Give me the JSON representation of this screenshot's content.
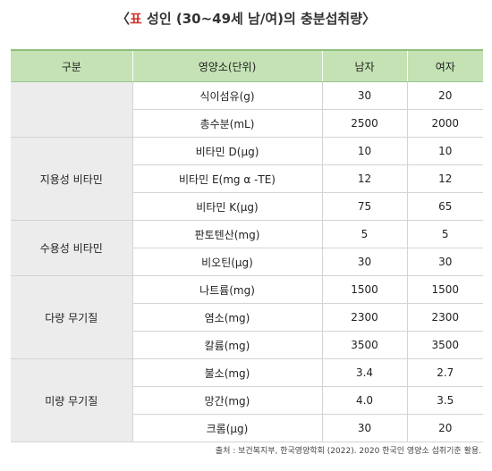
{
  "title": {
    "open": "〈",
    "label": "표",
    "text": " 성인 (30~49세 남/여)의 충분섭취량〉"
  },
  "table": {
    "header": [
      "구분",
      "영양소(단위)",
      "남자",
      "여자"
    ],
    "groups": [
      {
        "items": [
          {
            "nutrient": "식이섬유(g)",
            "male": 30,
            "female": 20
          },
          {
            "nutrient": "총수분(mL)",
            "male": 2500,
            "female": 2000
          }
        ]
      },
      {
        "name": "지용성 비타민",
        "items": [
          {
            "nutrient": "비타민 D(μg)",
            "male": 10,
            "female": 10
          },
          {
            "nutrient": "비타민 E(mg α -TE)",
            "male": 12,
            "female": 12
          },
          {
            "nutrient": "비타민 K(μg)",
            "male": 75,
            "female": 65
          }
        ]
      },
      {
        "name": "수용성 비타민",
        "items": [
          {
            "nutrient": "판토텐산(mg)",
            "male": 5,
            "female": 5
          },
          {
            "nutrient": "비오틴(μg)",
            "male": 30,
            "female": 30
          }
        ]
      },
      {
        "name": "다량 무기질",
        "items": [
          {
            "nutrient": "나트륨(mg)",
            "male": 1500,
            "female": 1500
          },
          {
            "nutrient": "염소(mg)",
            "male": 2300,
            "female": 2300
          },
          {
            "nutrient": "칼륨(mg)",
            "male": 3500,
            "female": 3500
          }
        ]
      },
      {
        "name": "미량 무기질",
        "items": [
          {
            "nutrient": "불소(mg)",
            "male": 3.4,
            "female": 2.7
          },
          {
            "nutrient": "망간(mg)",
            "male": "4.0",
            "female": 3.5
          },
          {
            "nutrient": "크롬(μg)",
            "male": 30,
            "female": 20
          }
        ]
      }
    ]
  },
  "footnote": "출처 : 보건복지부, 한국영양학회 (2022). 2020 한국인 영양소 섭취기준 활용."
}
